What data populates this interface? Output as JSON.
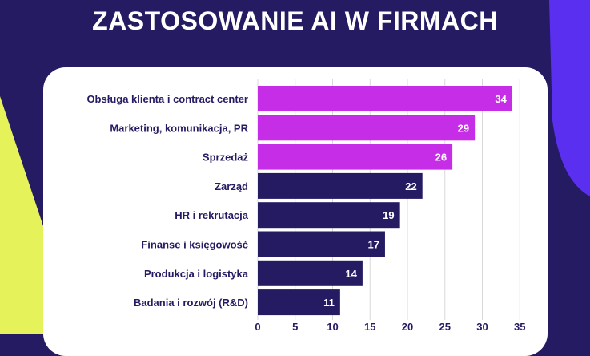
{
  "chart_data": {
    "type": "bar",
    "orientation": "horizontal",
    "title": "ZASTOSOWANIE AI W FIRMACH",
    "categories": [
      "Obsługa klienta i contract center",
      "Marketing, komunikacja, PR",
      "Sprzedaż",
      "Zarząd",
      "HR i rekrutacja",
      "Finanse i księgowość",
      "Produkcja i logistyka",
      "Badania i rozwój (R&D)"
    ],
    "values": [
      34,
      29,
      26,
      22,
      19,
      17,
      14,
      11
    ],
    "highlighted_count": 3,
    "xlim": [
      0,
      35
    ],
    "xticks": [
      0,
      5,
      10,
      15,
      20,
      25,
      30,
      35
    ],
    "grid": true,
    "colors": {
      "highlight": "#c62de6",
      "base": "#241b63",
      "grid": "#d9d9d9",
      "background": "#241b63",
      "accent_yellow": "#e6f25a",
      "accent_violet": "#5b2ff0"
    }
  }
}
